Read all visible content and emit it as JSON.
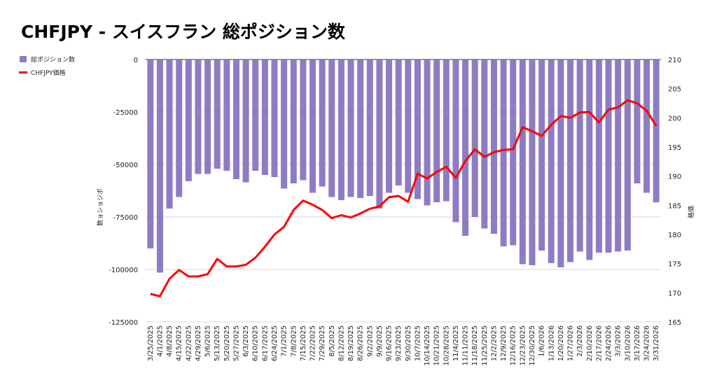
{
  "title": "CHFJPY - スイスフラン 総ポジション数",
  "chart_data": {
    "type": "bar+line",
    "title": "CHFJPY - スイスフラン 総ポジション数",
    "legend": {
      "placement": "top-left",
      "items": [
        {
          "label": "総ポジション数",
          "kind": "bar",
          "color": "#8e7cc3"
        },
        {
          "label": "CHFJPY価格",
          "kind": "line",
          "color": "#ff0000"
        }
      ]
    },
    "left_axis": {
      "title": "数ョショジポ",
      "ylim": [
        -125000,
        0
      ],
      "ticks": [
        0,
        -25000,
        -50000,
        -75000,
        -100000,
        -125000
      ],
      "tick_labels": [
        "0",
        "-25000",
        "-50000",
        "-75000",
        "-100000",
        "-125000"
      ]
    },
    "right_axis": {
      "title": "格価",
      "ylim": [
        165,
        210
      ],
      "ticks": [
        210,
        205,
        200,
        195,
        190,
        185,
        180,
        175,
        170,
        165
      ],
      "tick_labels": [
        "210",
        "205",
        "200",
        "195",
        "190",
        "185",
        "180",
        "175",
        "170",
        "165"
      ]
    },
    "grid": true,
    "categories": [
      "3/25/2025",
      "4/1/2025",
      "4/8/2025",
      "4/15/2025",
      "4/22/2025",
      "4/29/2025",
      "5/6/2025",
      "5/13/2025",
      "5/20/2025",
      "5/27/2025",
      "6/3/2025",
      "6/10/2025",
      "6/17/2025",
      "6/24/2025",
      "7/1/2025",
      "7/8/2025",
      "7/15/2025",
      "7/22/2025",
      "7/29/2025",
      "8/5/2025",
      "8/12/2025",
      "8/19/2025",
      "8/26/2025",
      "9/2/2025",
      "9/9/2025",
      "9/16/2025",
      "9/23/2025",
      "9/30/2025",
      "10/7/2025",
      "10/14/2025",
      "10/21/2025",
      "10/28/2025",
      "11/4/2025",
      "11/11/2025",
      "11/18/2025",
      "11/25/2025",
      "12/2/2025",
      "12/9/2025",
      "12/16/2025",
      "12/23/2025",
      "12/30/2025",
      "1/6/2026",
      "1/13/2026",
      "1/20/2026",
      "1/27/2026",
      "2/3/2026",
      "2/10/2026",
      "2/17/2026",
      "2/24/2026",
      "3/3/2026",
      "3/10/2026",
      "3/17/2026",
      "3/24/2026",
      "3/31/2026"
    ],
    "series": [
      {
        "name": "総ポジション数",
        "axis": "left",
        "color": "#8e7cc3",
        "values": [
          -90000,
          -101500,
          -71000,
          -65500,
          -58000,
          -54500,
          -54500,
          -52000,
          -53000,
          -57000,
          -58500,
          -53000,
          -55000,
          -56000,
          -61500,
          -59000,
          -57500,
          -63500,
          -60500,
          -65500,
          -67000,
          -65500,
          -66000,
          -65000,
          -71000,
          -63500,
          -60000,
          -63500,
          -66500,
          -69500,
          -68000,
          -67500,
          -77500,
          -84000,
          -75000,
          -80500,
          -83000,
          -89000,
          -88500,
          -97500,
          -98000,
          -91000,
          -97000,
          -99000,
          -96500,
          -91500,
          -95500,
          -92000,
          -92000,
          -91500,
          -91000,
          -59000,
          -63500,
          -68000
        ]
      },
      {
        "name": "CHFJPY価格",
        "axis": "right",
        "color": "#ff0000",
        "values": [
          169.8,
          169.4,
          172.4,
          173.9,
          172.8,
          172.8,
          173.2,
          175.8,
          174.5,
          174.5,
          174.8,
          176.0,
          177.9,
          180.0,
          181.3,
          184.2,
          185.8,
          185.1,
          184.2,
          182.8,
          183.3,
          182.9,
          183.6,
          184.4,
          184.8,
          186.4,
          186.6,
          185.6,
          190.4,
          189.6,
          190.7,
          191.6,
          189.7,
          192.6,
          194.6,
          193.3,
          194.1,
          194.5,
          194.6,
          198.4,
          197.7,
          196.9,
          198.8,
          200.3,
          200.0,
          200.9,
          201.0,
          199.2,
          201.4,
          201.8,
          203.0,
          202.5,
          201.2,
          198.6
        ]
      }
    ]
  }
}
